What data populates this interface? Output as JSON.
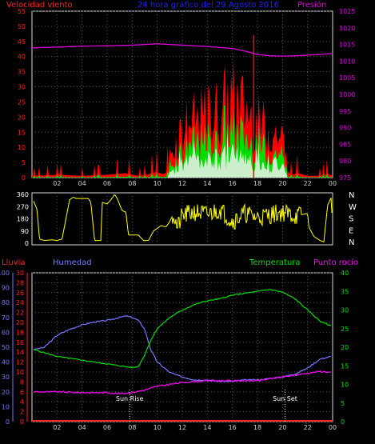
{
  "header": {
    "wind_label": "Velocidad viento",
    "title": "24 hora gráfico del  29 Agosto 2016",
    "pressure_label": "Presión"
  },
  "x_ticks": [
    "02",
    "04",
    "06",
    "08",
    "10",
    "12",
    "14",
    "16",
    "18",
    "20",
    "22",
    "00"
  ],
  "colors": {
    "wind_red": "#ff0000",
    "wind_green": "#00dd00",
    "wind_pale": "#cceecc",
    "pressure": "#dd00dd",
    "direction": "#ffff00",
    "humidity": "#7777ff",
    "temperature": "#00dd00",
    "dewpoint": "#ff00ff",
    "rain": "#ff2020",
    "grid": "#555555",
    "frame": "#dddddd"
  },
  "chart_data": [
    {
      "type": "area",
      "title": "24 hora gráfico del  29 Agosto 2016",
      "x_unit": "hour",
      "x_range": [
        0,
        24
      ],
      "grid": true,
      "left_axis": {
        "label": "Velocidad viento",
        "range": [
          0,
          55
        ],
        "ticks": [
          "0",
          "5",
          "10",
          "15",
          "20",
          "25",
          "30",
          "35",
          "40",
          "45",
          "50",
          "55"
        ]
      },
      "right_axis": {
        "label": "Presión",
        "range": [
          975,
          1025
        ],
        "ticks": [
          "975",
          "980",
          "985",
          "990",
          "995",
          "1000",
          "1005",
          "1010",
          "1015",
          "1020",
          "1025"
        ]
      },
      "series": [
        {
          "name": "Velocidad viento",
          "axis": "left",
          "x": [
            0,
            2,
            4,
            6,
            7.5,
            7.7,
            8.5,
            9.2,
            9.8,
            10.5,
            11.0,
            11.5,
            12,
            13,
            14,
            15,
            15.5,
            16,
            16.5,
            17,
            17.4,
            18,
            19,
            20,
            20.3,
            20.7,
            21.2,
            22,
            23,
            23.6,
            24
          ],
          "y": [
            2,
            3,
            2,
            3,
            5,
            4,
            2,
            3,
            6,
            4,
            8,
            14,
            20,
            21,
            24,
            26,
            29,
            30,
            28,
            27,
            24,
            21,
            18,
            15,
            8,
            3,
            5,
            2,
            2,
            4,
            2
          ]
        },
        {
          "name": "Presión",
          "axis": "right",
          "x": [
            0,
            2,
            4,
            6,
            8,
            10,
            12,
            14,
            16,
            17,
            18,
            19,
            20,
            21,
            22,
            23,
            24
          ],
          "y": [
            1014,
            1014.2,
            1014.5,
            1014.6,
            1014.8,
            1015.2,
            1014.8,
            1014.4,
            1013.8,
            1013,
            1012,
            1011.6,
            1011.5,
            1011.6,
            1011.8,
            1012,
            1012.3
          ]
        }
      ]
    },
    {
      "type": "line",
      "x_unit": "hour",
      "x_range": [
        0,
        24
      ],
      "grid": true,
      "left_axis": {
        "range": [
          0,
          360
        ],
        "ticks": [
          "0",
          "90",
          "180",
          "270",
          "360"
        ]
      },
      "right_axis_labels": [
        "N",
        "W",
        "S",
        "E",
        "N"
      ],
      "series": [
        {
          "axis": "left",
          "x": [
            0,
            0.4,
            0.6,
            1.0,
            1.6,
            2.0,
            2.4,
            3.0,
            3.3,
            3.5,
            4.5,
            4.7,
            5.0,
            5.5,
            5.6,
            6.0,
            6.3,
            6.6,
            6.8,
            7.2,
            7.5,
            7.7,
            8.5,
            8.9,
            9.3,
            9.7,
            10.3,
            10.7,
            11.0,
            11.3,
            11.6,
            12,
            13,
            14,
            15,
            16,
            17,
            18,
            19,
            20,
            21,
            22,
            22.1,
            22.5,
            23,
            23.3,
            23.6,
            23.9,
            24
          ],
          "y": [
            340,
            250,
            30,
            20,
            25,
            20,
            30,
            320,
            340,
            330,
            330,
            300,
            20,
            20,
            300,
            290,
            320,
            360,
            330,
            240,
            230,
            60,
            60,
            20,
            20,
            90,
            130,
            120,
            160,
            220,
            110,
            200,
            230,
            210,
            250,
            160,
            220,
            190,
            210,
            230,
            200,
            220,
            120,
            50,
            20,
            10,
            280,
            340,
            20
          ]
        }
      ]
    },
    {
      "type": "line",
      "x_unit": "hour",
      "x_range": [
        0,
        24
      ],
      "grid": true,
      "axes": {
        "humedad": {
          "label": "Humedad",
          "range": [
            0,
            100
          ],
          "ticks": [
            "0",
            "10",
            "20",
            "30",
            "40",
            "50",
            "60",
            "70",
            "80",
            "90",
            "100"
          ]
        },
        "lluvia": {
          "label": "Lluvia",
          "range": [
            0,
            30
          ],
          "ticks": [
            "0",
            "2",
            "4",
            "6",
            "8",
            "10",
            "12",
            "14",
            "16",
            "18",
            "20",
            "22",
            "24",
            "26",
            "28",
            "30"
          ]
        },
        "temperatura": {
          "label": "Temperatura",
          "range": [
            0,
            40
          ],
          "ticks": [
            "0",
            "5",
            "10",
            "15",
            "20",
            "25",
            "30",
            "35",
            "40"
          ]
        }
      },
      "annotations": [
        {
          "text": "Sun Rise",
          "x": 7.8
        },
        {
          "text": "Sun Set",
          "x": 20.2
        }
      ],
      "series": [
        {
          "name": "Humedad",
          "axis": "humedad",
          "x": [
            0,
            1,
            2,
            3,
            4,
            5,
            6,
            7,
            7.5,
            8,
            8.5,
            9,
            9.5,
            10,
            11,
            12,
            13,
            14,
            15,
            16,
            17,
            18,
            19,
            20,
            21,
            22,
            23,
            24
          ],
          "y": [
            48,
            50,
            58,
            62,
            65,
            67,
            68,
            70,
            71,
            70,
            68,
            62,
            48,
            40,
            33,
            30,
            28,
            28,
            27,
            27,
            28,
            28,
            29,
            30,
            32,
            36,
            42,
            44
          ]
        },
        {
          "name": "Temperatura",
          "axis": "temperatura",
          "x": [
            0,
            1,
            2,
            3,
            4,
            5,
            6,
            7,
            8,
            8.5,
            9,
            9.5,
            10,
            11,
            12,
            13,
            14,
            15,
            16,
            17,
            18,
            19,
            20,
            21,
            22,
            23,
            24
          ],
          "y": [
            19.5,
            18.5,
            17.5,
            17,
            16.5,
            16,
            15.5,
            15,
            14.5,
            14.8,
            18,
            22,
            25,
            28,
            30,
            31.5,
            32.5,
            33,
            34,
            34.5,
            35,
            35.5,
            34.8,
            33,
            30,
            27,
            25.5
          ]
        },
        {
          "name": "Punto rocío",
          "axis": "temperatura",
          "x": [
            0,
            2,
            4,
            6,
            7,
            8,
            9,
            10,
            11,
            12,
            14,
            16,
            18,
            20,
            21,
            22,
            23,
            24
          ],
          "y": [
            8,
            8,
            7.8,
            7.8,
            7.5,
            7.8,
            8.5,
            9.5,
            10,
            10.5,
            11,
            11,
            11,
            12,
            12.5,
            13,
            13.5,
            13.2
          ]
        },
        {
          "name": "Lluvia",
          "axis": "lluvia",
          "x": [
            0,
            24
          ],
          "y": [
            0,
            0
          ]
        }
      ]
    }
  ]
}
